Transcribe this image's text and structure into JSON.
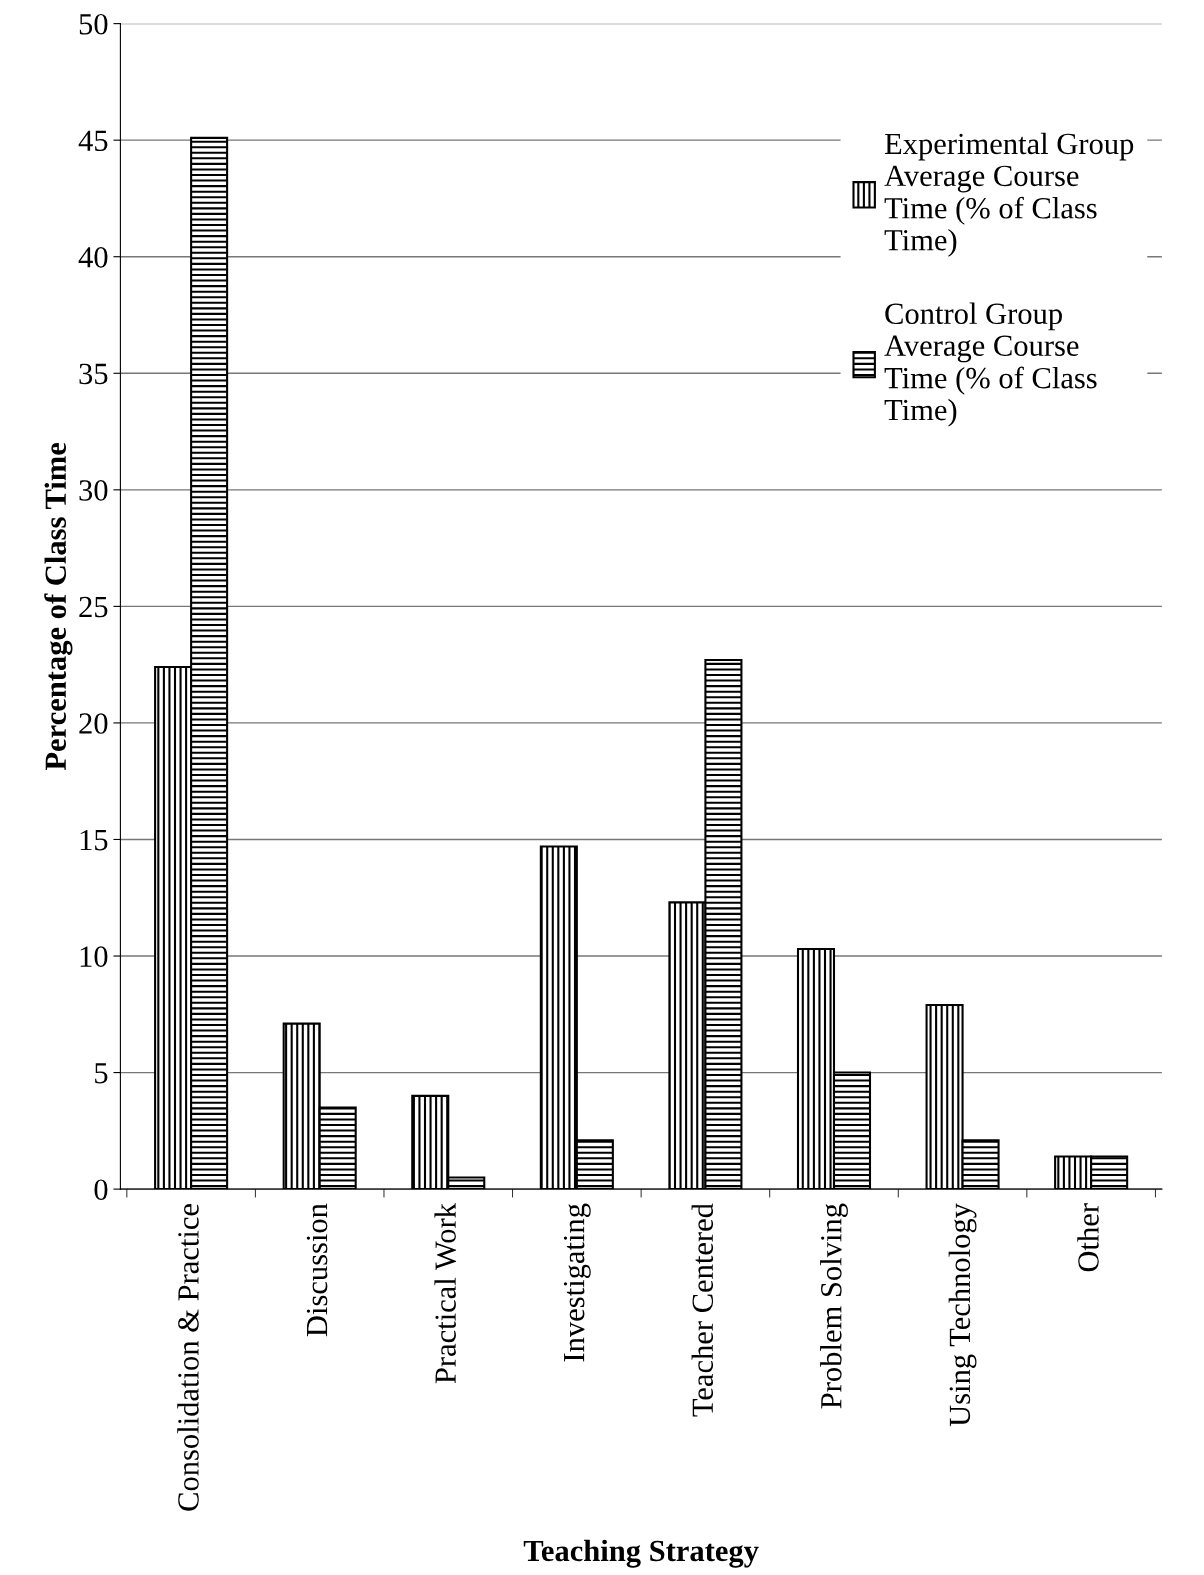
{
  "chart_data": {
    "type": "bar",
    "xlabel": "Teaching Strategy",
    "ylabel": "Percentage of Class Time",
    "categories": [
      "Consolidation & Practice",
      "Discussion",
      "Practical Work",
      "Investigating",
      "Teacher Centered",
      "Problem Solving",
      "Using Technology",
      "Other"
    ],
    "series": [
      {
        "name": "Experimental Group Average Course Time (% of Class Time)",
        "color": "#000000",
        "values": [
          22.4,
          7.1,
          4.0,
          14.7,
          12.3,
          10.3,
          7.9,
          1.4
        ]
      },
      {
        "name": "Control Group Average Course Time (% of Class Time)",
        "color": "#000000",
        "values": [
          45.1,
          3.5,
          0.5,
          2.1,
          22.7,
          5.0,
          2.1,
          1.4
        ]
      }
    ],
    "ylim": [
      0,
      50
    ],
    "yticks": [
      0,
      5,
      10,
      15,
      20,
      25,
      30,
      35,
      40,
      45,
      50
    ],
    "grid": "y",
    "legend": "top right"
  }
}
